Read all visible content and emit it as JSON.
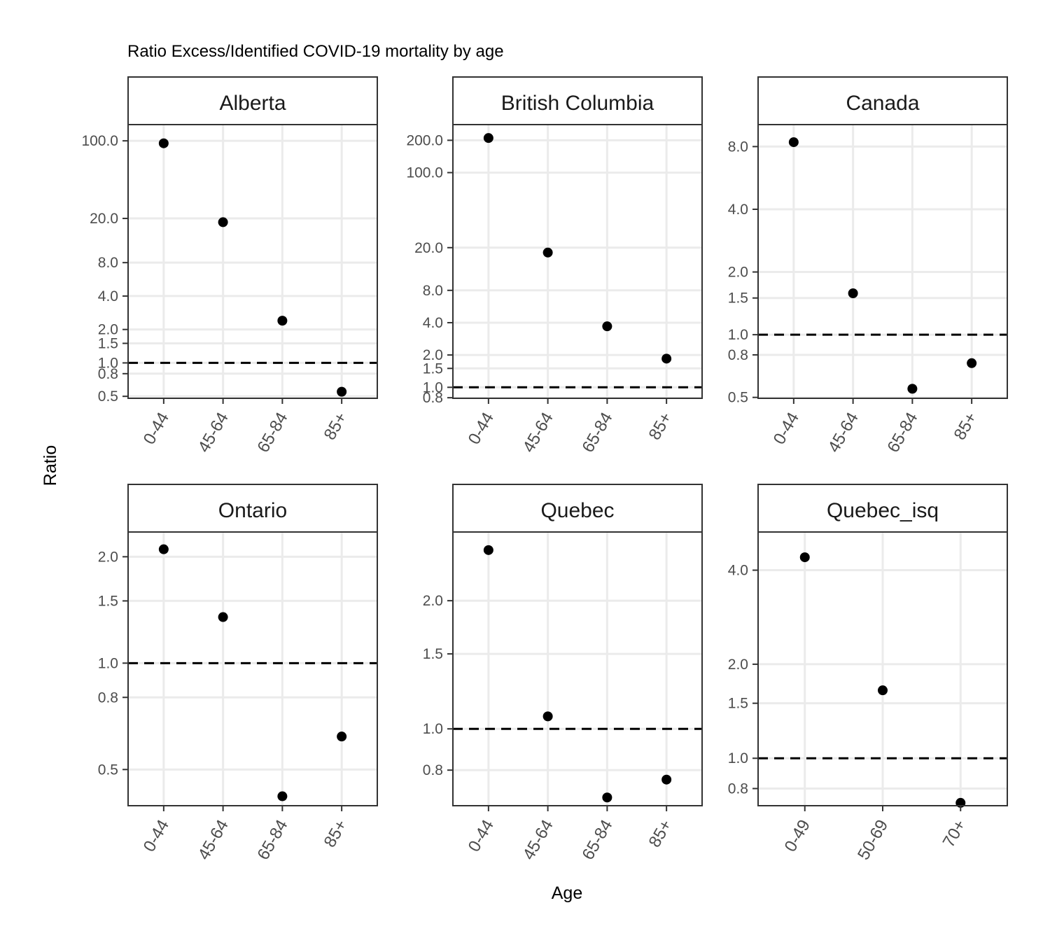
{
  "chart_data": {
    "type": "scatter",
    "title": "Ratio Excess/Identified COVID-19 mortality by age",
    "xlabel": "Age",
    "ylabel": "Ratio",
    "y_scale": "log",
    "reference_line": {
      "y": 1.0,
      "style": "dashed"
    },
    "grid": true,
    "facets": [
      {
        "name": "Alberta",
        "categories": [
          "0-44",
          "45-64",
          "65-84",
          "85+"
        ],
        "values": [
          95,
          18.5,
          2.4,
          0.55
        ],
        "yticks": [
          0.5,
          0.8,
          1.0,
          1.5,
          2.0,
          4.0,
          8.0,
          20.0,
          100.0
        ],
        "ytick_labels": [
          "0.5",
          "0.8",
          "1.0",
          "1.5",
          "2.0",
          "4.0",
          "8.0",
          "20.0",
          "100.0"
        ],
        "ylim": [
          0.48,
          140
        ]
      },
      {
        "name": "British Columbia",
        "categories": [
          "0-44",
          "45-64",
          "65-84",
          "85+"
        ],
        "values": [
          210,
          18,
          3.7,
          1.85
        ],
        "yticks": [
          0.8,
          1.0,
          1.5,
          2.0,
          4.0,
          8.0,
          20.0,
          100.0,
          200.0
        ],
        "ytick_labels": [
          "0.8",
          "1.0",
          "1.5",
          "2.0",
          "4.0",
          "8.0",
          "20.0",
          "100.0",
          "200.0"
        ],
        "ylim": [
          0.79,
          280
        ]
      },
      {
        "name": "Canada",
        "categories": [
          "0-44",
          "45-64",
          "65-84",
          "85+"
        ],
        "values": [
          8.4,
          1.58,
          0.55,
          0.73
        ],
        "yticks": [
          0.5,
          0.8,
          1.0,
          1.5,
          2.0,
          4.0,
          8.0
        ],
        "ytick_labels": [
          "0.5",
          "0.8",
          "1.0",
          "1.5",
          "2.0",
          "4.0",
          "8.0"
        ],
        "ylim": [
          0.495,
          10.2
        ]
      },
      {
        "name": "Ontario",
        "categories": [
          "0-44",
          "45-64",
          "65-84",
          "85+"
        ],
        "values": [
          2.1,
          1.35,
          0.42,
          0.62
        ],
        "yticks": [
          0.5,
          0.8,
          1.0,
          1.5,
          2.0
        ],
        "ytick_labels": [
          "0.5",
          "0.8",
          "1.0",
          "1.5",
          "2.0"
        ],
        "ylim": [
          0.395,
          2.35
        ]
      },
      {
        "name": "Quebec",
        "categories": [
          "0-44",
          "45-64",
          "65-84",
          "85+"
        ],
        "values": [
          2.63,
          1.07,
          0.69,
          0.76
        ],
        "yticks": [
          0.8,
          1.0,
          1.5,
          2.0
        ],
        "ytick_labels": [
          "0.8",
          "1.0",
          "1.5",
          "2.0"
        ],
        "ylim": [
          0.66,
          2.9
        ]
      },
      {
        "name": "Quebec_isq",
        "categories": [
          "0-49",
          "50-69",
          "70+"
        ],
        "values": [
          4.4,
          1.65,
          0.72
        ],
        "yticks": [
          0.8,
          1.0,
          1.5,
          2.0,
          4.0
        ],
        "ytick_labels": [
          "0.8",
          "1.0",
          "1.5",
          "2.0",
          "4.0"
        ],
        "ylim": [
          0.705,
          5.3
        ]
      }
    ]
  },
  "colors": {
    "points": "#000000",
    "grid": "#ebebeb",
    "panel_border": "#333333",
    "strip_bg": "#ffffff",
    "tick_text": "#4d4d4d"
  }
}
